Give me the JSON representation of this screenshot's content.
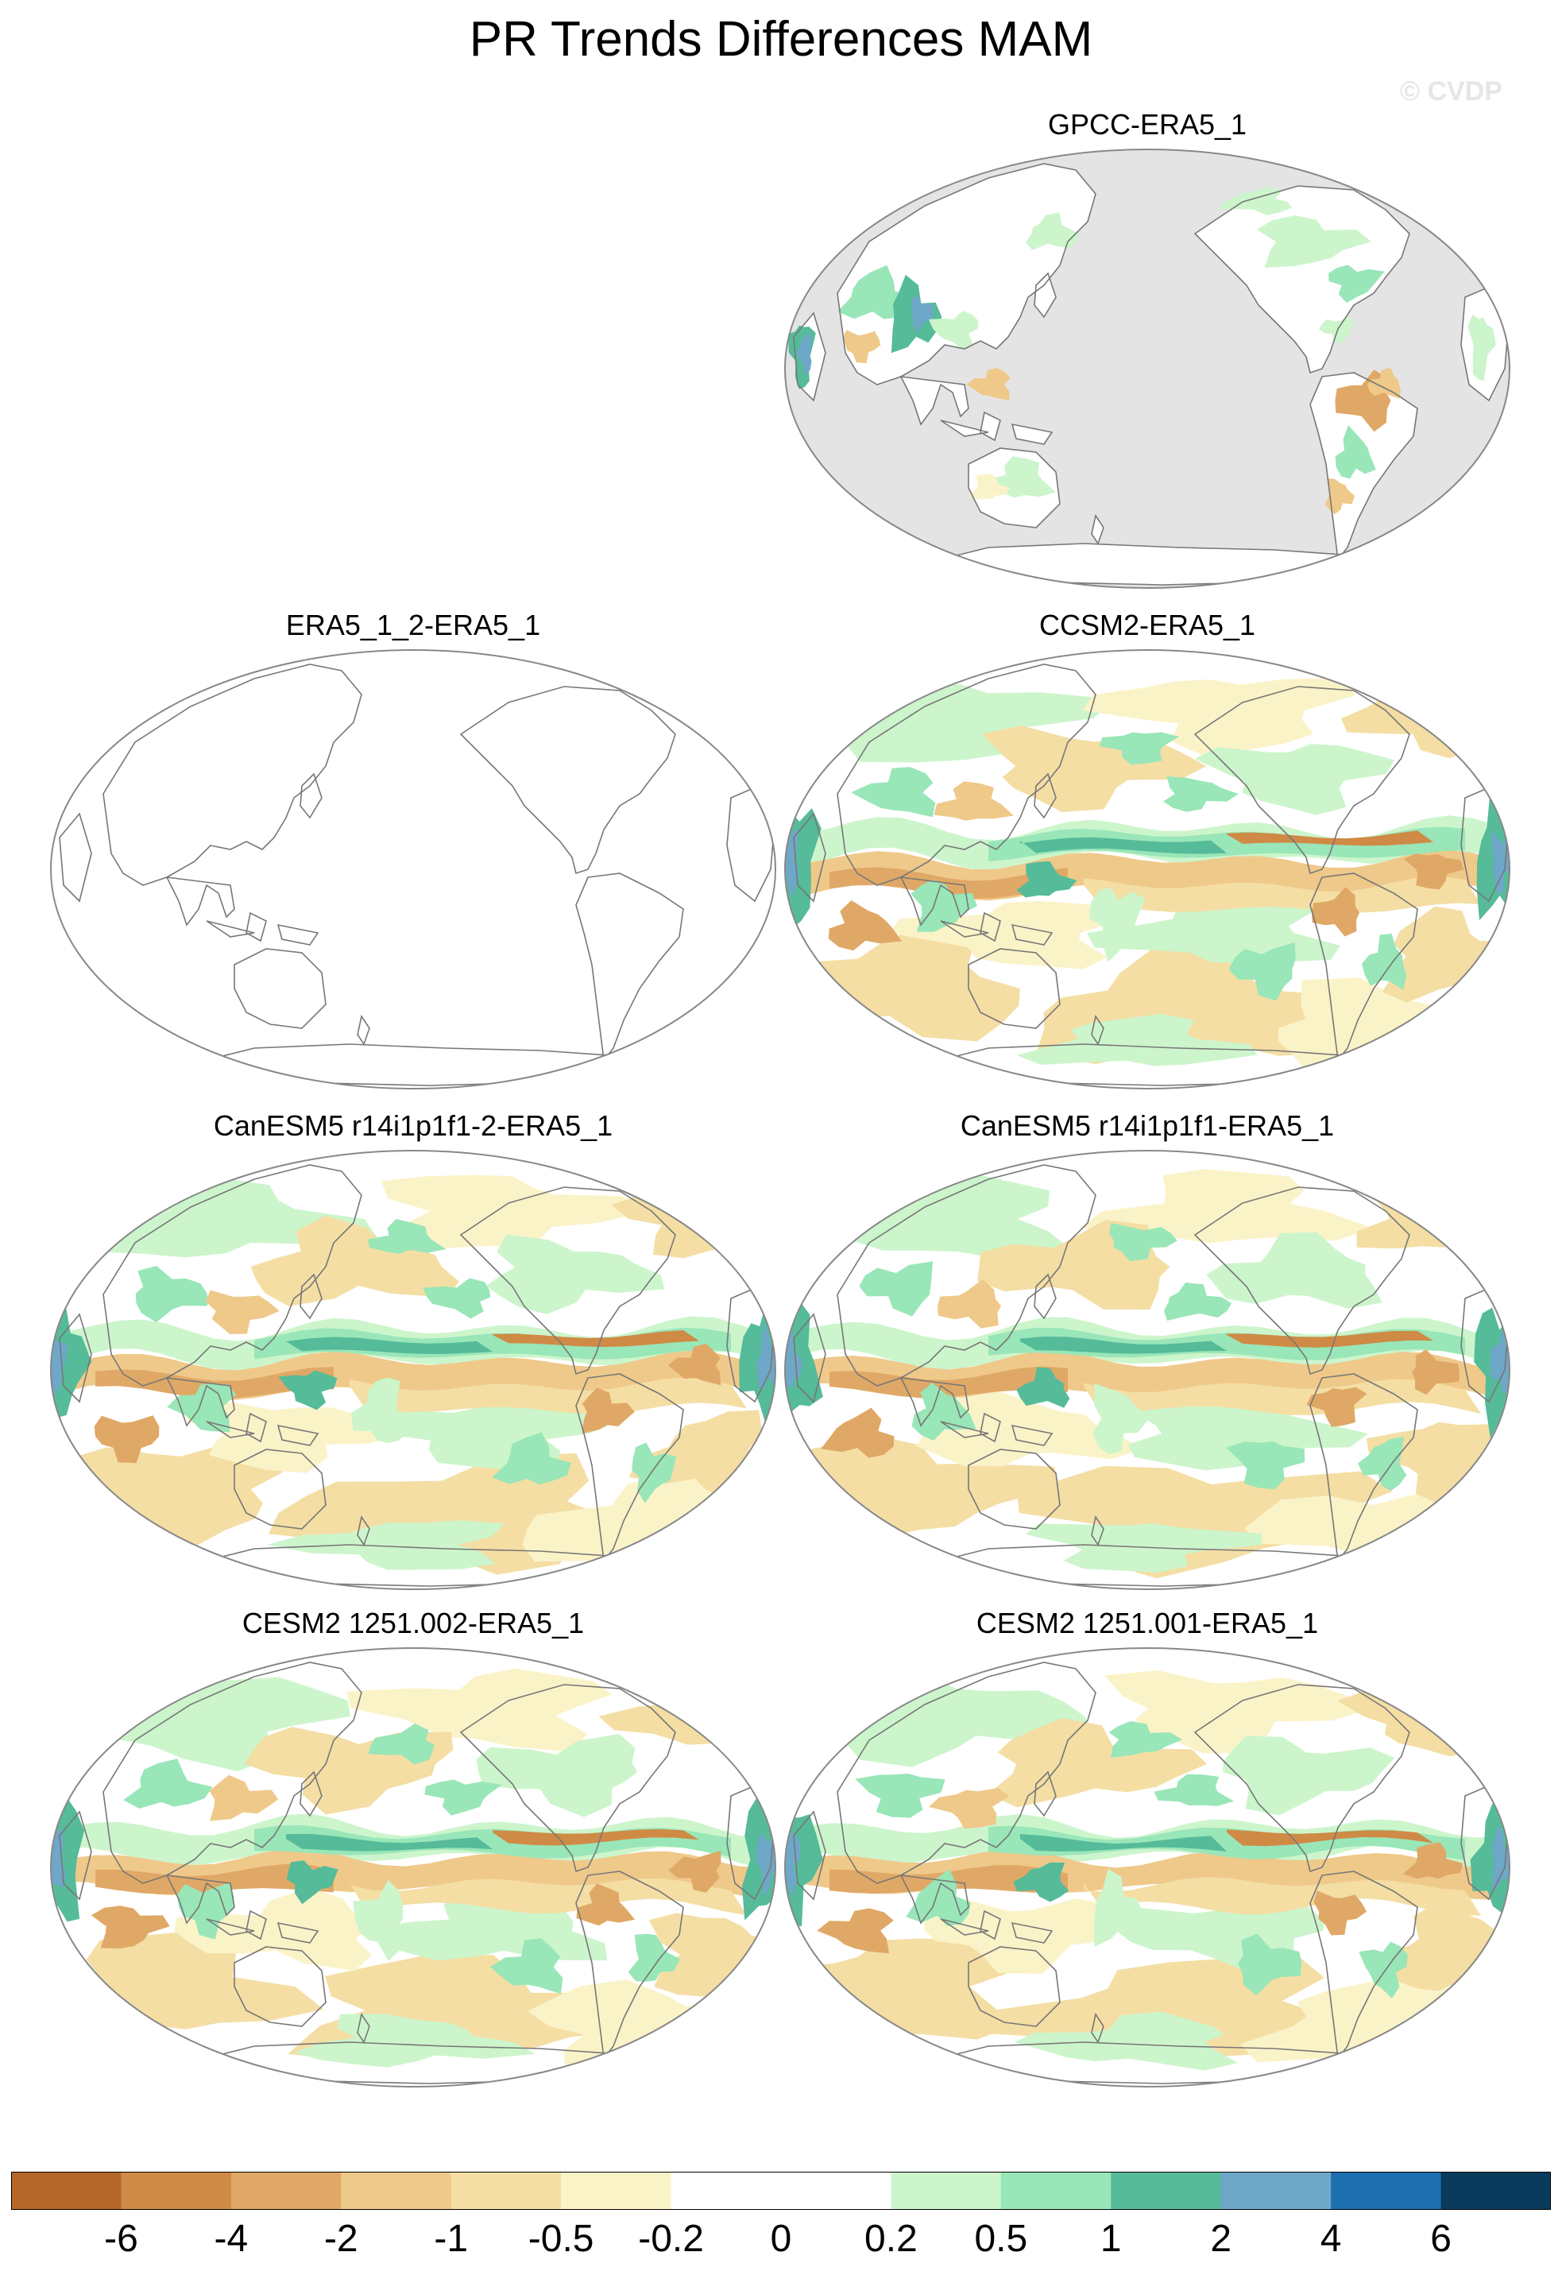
{
  "title": "PR Trends Differences MAM",
  "watermark": "© CVDP",
  "panels": [
    {
      "label": "GPCC-ERA5_1",
      "variant": "obs"
    },
    {
      "label": "ERA5_1_2-ERA5_1",
      "variant": "blank"
    },
    {
      "label": "CCSM2-ERA5_1",
      "variant": "model"
    },
    {
      "label": "CanESM5 r14i1p1f1-2-ERA5_1",
      "variant": "model"
    },
    {
      "label": "CanESM5 r14i1p1f1-ERA5_1",
      "variant": "model"
    },
    {
      "label": "CESM2 1251.002-ERA5_1",
      "variant": "model"
    },
    {
      "label": "CESM2 1251.001-ERA5_1",
      "variant": "model"
    }
  ],
  "colorbar": {
    "colors": [
      "#b5672a",
      "#cf8a45",
      "#e0a866",
      "#efc98a",
      "#f4dea4",
      "#fbf3c8",
      "#ffffff",
      "#ffffff",
      "#ccf5cc",
      "#99e6b8",
      "#55bb99",
      "#6fa7c8",
      "#1e6fb0",
      "#0a3a5c"
    ],
    "labels": [
      "-6",
      "-4",
      "-2",
      "-1",
      "-0.5",
      "-0.2",
      "0",
      "0.2",
      "0.5",
      "1",
      "2",
      "4",
      "6"
    ]
  },
  "colors": {
    "land_mask": "#e4e4e4",
    "coastline": "#777777",
    "border": "#888888"
  }
}
